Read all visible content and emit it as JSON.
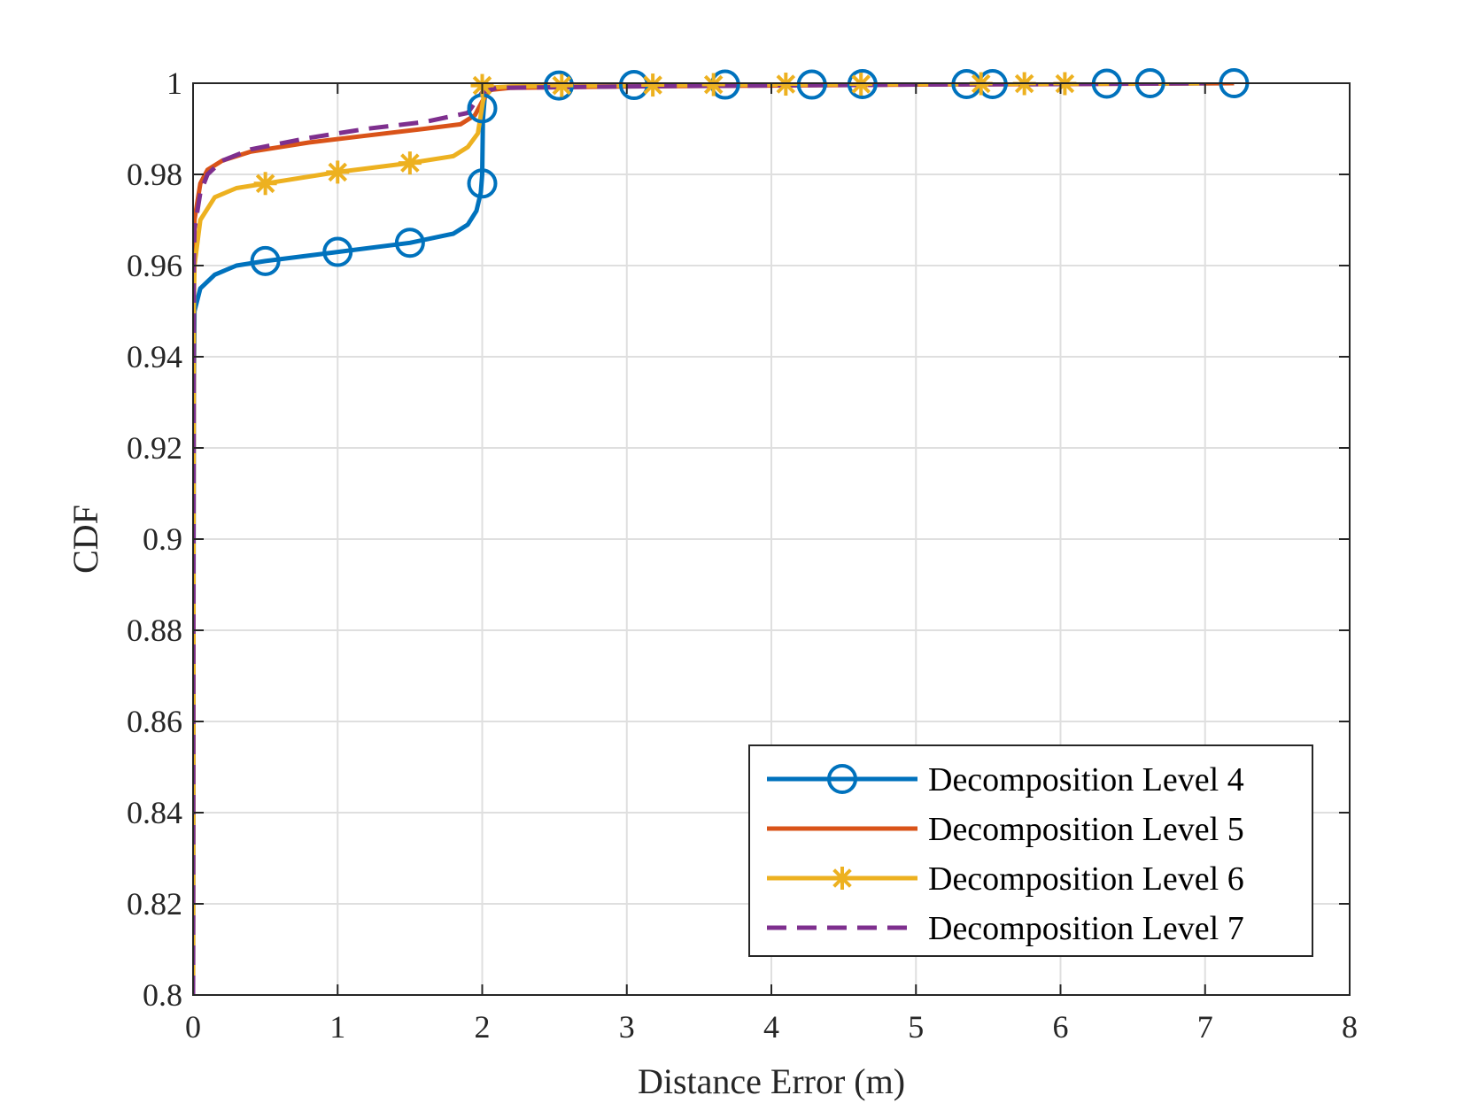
{
  "chart_data": {
    "type": "line",
    "title": "",
    "xlabel": "Distance Error (m)",
    "ylabel": "CDF",
    "xlim": [
      0,
      8
    ],
    "ylim": [
      0.8,
      1
    ],
    "xticks": [
      "0",
      "1",
      "2",
      "3",
      "4",
      "5",
      "6",
      "7",
      "8"
    ],
    "yticks": [
      "0.8",
      "0.82",
      "0.84",
      "0.86",
      "0.88",
      "0.9",
      "0.92",
      "0.94",
      "0.96",
      "0.98",
      "1"
    ],
    "grid": true,
    "legend_position": "bottom-right",
    "series": [
      {
        "name": "Decomposition Level 4",
        "color": "#0072BD",
        "line": "solid",
        "marker": "circle",
        "points": [
          [
            0,
            0.8
          ],
          [
            0.005,
            0.93
          ],
          [
            0.01,
            0.95
          ],
          [
            0.05,
            0.955
          ],
          [
            0.15,
            0.958
          ],
          [
            0.3,
            0.96
          ],
          [
            0.5,
            0.961
          ],
          [
            1.0,
            0.963
          ],
          [
            1.5,
            0.965
          ],
          [
            1.8,
            0.967
          ],
          [
            1.9,
            0.969
          ],
          [
            1.96,
            0.972
          ],
          [
            1.99,
            0.976
          ],
          [
            2.0,
            0.98
          ],
          [
            2.005,
            0.992
          ],
          [
            2.02,
            0.998
          ],
          [
            2.1,
            0.999
          ],
          [
            2.5,
            0.9993
          ],
          [
            3.0,
            0.9995
          ],
          [
            4.0,
            0.9997
          ],
          [
            5.0,
            0.9998
          ],
          [
            6.0,
            0.9999
          ],
          [
            7.2,
            1.0
          ]
        ],
        "markers": [
          [
            0.5,
            0.961
          ],
          [
            1.0,
            0.963
          ],
          [
            1.5,
            0.965
          ],
          [
            2.0,
            0.978
          ],
          [
            2.0,
            0.9945
          ],
          [
            2.53,
            0.9995
          ],
          [
            3.05,
            0.9996
          ],
          [
            3.68,
            0.9997
          ],
          [
            4.28,
            0.9997
          ],
          [
            4.63,
            0.9998
          ],
          [
            5.35,
            0.9998
          ],
          [
            5.53,
            0.9998
          ],
          [
            6.32,
            0.9999
          ],
          [
            6.62,
            1.0
          ],
          [
            7.2,
            1.0
          ]
        ]
      },
      {
        "name": "Decomposition Level 5",
        "color": "#D95319",
        "line": "solid",
        "marker": "none",
        "points": [
          [
            0,
            0.8
          ],
          [
            0.005,
            0.96
          ],
          [
            0.01,
            0.97
          ],
          [
            0.05,
            0.978
          ],
          [
            0.1,
            0.981
          ],
          [
            0.2,
            0.983
          ],
          [
            0.4,
            0.985
          ],
          [
            0.8,
            0.987
          ],
          [
            1.2,
            0.9885
          ],
          [
            1.6,
            0.99
          ],
          [
            1.85,
            0.991
          ],
          [
            1.95,
            0.993
          ],
          [
            2.0,
            0.996
          ],
          [
            2.05,
            0.9985
          ],
          [
            2.2,
            0.999
          ],
          [
            3.0,
            0.9993
          ],
          [
            4.0,
            0.9995
          ],
          [
            5.0,
            0.9997
          ],
          [
            6.0,
            0.9998
          ],
          [
            7.2,
            1.0
          ]
        ]
      },
      {
        "name": "Decomposition Level 6",
        "color": "#EDB120",
        "line": "solid",
        "marker": "asterisk",
        "points": [
          [
            0,
            0.8
          ],
          [
            0.005,
            0.95
          ],
          [
            0.01,
            0.96
          ],
          [
            0.05,
            0.97
          ],
          [
            0.15,
            0.975
          ],
          [
            0.3,
            0.977
          ],
          [
            0.5,
            0.978
          ],
          [
            1.0,
            0.9805
          ],
          [
            1.5,
            0.9825
          ],
          [
            1.8,
            0.984
          ],
          [
            1.9,
            0.986
          ],
          [
            1.97,
            0.989
          ],
          [
            2.0,
            0.995
          ],
          [
            2.02,
            0.999
          ],
          [
            2.2,
            0.9993
          ],
          [
            3.0,
            0.9995
          ],
          [
            4.0,
            0.9997
          ],
          [
            5.0,
            0.9998
          ],
          [
            6.0,
            0.9999
          ],
          [
            7.0,
            1.0
          ]
        ],
        "markers": [
          [
            0.5,
            0.978
          ],
          [
            1.0,
            0.9805
          ],
          [
            1.5,
            0.9825
          ],
          [
            2.0,
            0.9995
          ],
          [
            2.55,
            0.9995
          ],
          [
            3.18,
            0.9996
          ],
          [
            3.6,
            0.9997
          ],
          [
            4.1,
            0.9998
          ],
          [
            4.62,
            0.9998
          ],
          [
            5.45,
            0.9999
          ],
          [
            5.75,
            0.9999
          ],
          [
            6.03,
            0.9999
          ]
        ]
      },
      {
        "name": "Decomposition Level 7",
        "color": "#7E2F8E",
        "line": "dashed",
        "marker": "none",
        "points": [
          [
            0,
            0.8
          ],
          [
            0.005,
            0.96
          ],
          [
            0.01,
            0.968
          ],
          [
            0.05,
            0.976
          ],
          [
            0.1,
            0.98
          ],
          [
            0.2,
            0.983
          ],
          [
            0.4,
            0.9855
          ],
          [
            0.8,
            0.988
          ],
          [
            1.2,
            0.99
          ],
          [
            1.6,
            0.9915
          ],
          [
            1.9,
            0.9935
          ],
          [
            2.0,
            0.998
          ],
          [
            2.1,
            0.999
          ],
          [
            3.0,
            0.9993
          ],
          [
            4.0,
            0.9995
          ],
          [
            5.0,
            0.9997
          ],
          [
            6.0,
            0.9998
          ],
          [
            7.0,
            1.0
          ]
        ]
      }
    ]
  }
}
